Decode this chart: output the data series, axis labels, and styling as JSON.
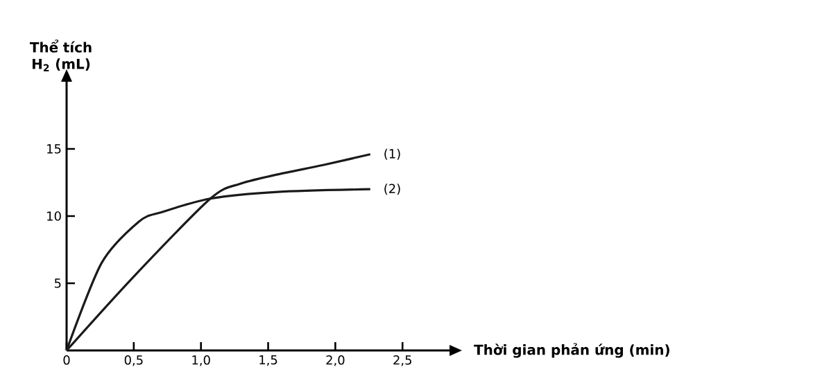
{
  "chart_data": {
    "type": "line",
    "xlabel": "Thời gian phản ứng (min)",
    "ylabel": "Thể tích H$_{2}$ (mL)",
    "xlim": [
      0,
      2.85
    ],
    "ylim": [
      0,
      20
    ],
    "xticks": [
      {
        "value": 0,
        "label": "0"
      },
      {
        "value": 0.5,
        "label": "0,5"
      },
      {
        "value": 1.0,
        "label": "1,0"
      },
      {
        "value": 1.5,
        "label": "1,5"
      },
      {
        "value": 2.0,
        "label": "2,0"
      },
      {
        "value": 2.5,
        "label": "2,5"
      }
    ],
    "yticks": [
      5,
      10,
      15
    ],
    "line_style": "solid",
    "series": [
      {
        "name": "(1)",
        "color": "#1a1a1a",
        "x": [
          0,
          0.5,
          1.07,
          1.29,
          1.57,
          1.91,
          2.26
        ],
        "values": [
          0,
          5.5,
          11.3,
          12.4,
          13.1,
          13.8,
          14.6
        ]
      },
      {
        "name": "(2)",
        "color": "#1a1a1a",
        "x": [
          0,
          0.26,
          0.54,
          0.71,
          1.07,
          1.57,
          2.26
        ],
        "values": [
          0,
          6.5,
          9.6,
          10.3,
          11.3,
          11.8,
          12.0
        ]
      }
    ]
  }
}
